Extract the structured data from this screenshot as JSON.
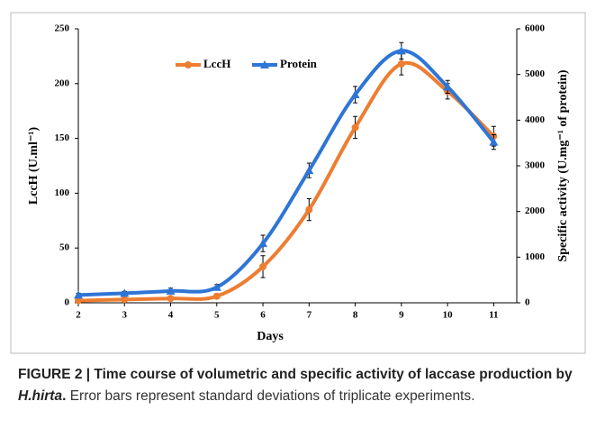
{
  "chart_data": {
    "type": "line",
    "x": [
      2,
      3,
      4,
      5,
      6,
      7,
      8,
      9,
      10,
      11
    ],
    "xlim": [
      2,
      11.5
    ],
    "xticks": [
      2,
      3,
      4,
      5,
      6,
      7,
      8,
      9,
      10,
      11
    ],
    "ylim": [
      0,
      250
    ],
    "yticks": [
      0,
      50,
      100,
      150,
      200,
      250
    ],
    "y2lim": [
      0,
      6000
    ],
    "y2ticks": [
      0,
      1000,
      2000,
      3000,
      4000,
      5000,
      6000
    ],
    "xlabel": "Days",
    "ylabel": "LccH (U.ml⁻¹)",
    "y2label": "Specific activity (U.mg⁻¹ of protein)",
    "grid": false,
    "legend": "top-left",
    "series": [
      {
        "name": "LccH",
        "color": "#ed7d31",
        "axis": "y",
        "marker": "circle",
        "values": [
          2,
          3,
          4,
          6,
          33,
          85,
          160,
          218,
          193,
          152
        ],
        "errors": [
          1,
          1,
          1,
          2,
          10,
          10,
          10,
          10,
          7,
          9
        ]
      },
      {
        "name": "Protein",
        "color": "#2e75d6",
        "axis": "y2",
        "marker": "triangle",
        "values": [
          170,
          210,
          260,
          340,
          1300,
          2900,
          4560,
          5520,
          4730,
          3520
        ],
        "errors": [
          40,
          40,
          60,
          60,
          180,
          160,
          180,
          180,
          140,
          160
        ]
      }
    ]
  },
  "caption": {
    "bold": "FIGURE 2 | Time course of volumetric and specific activity of laccase production by ",
    "italic": "H.hirta",
    "bold_end": ".",
    "text": " Error bars represent standard deviations of triplicate experiments."
  }
}
